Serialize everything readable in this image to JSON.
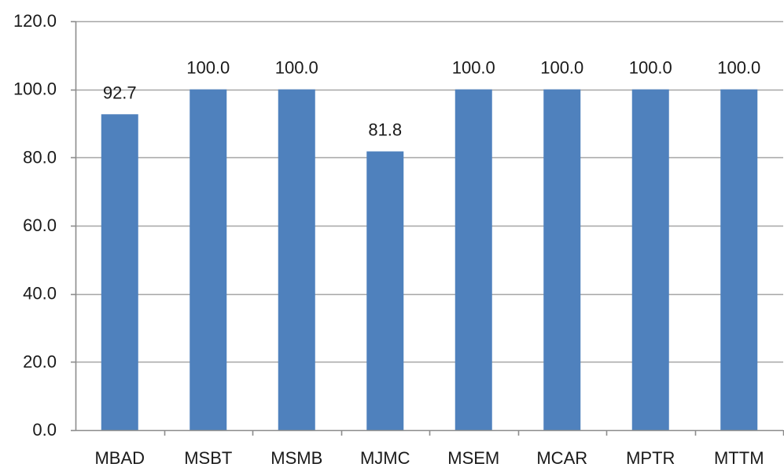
{
  "chart_data": {
    "type": "bar",
    "title": "",
    "xlabel": "",
    "ylabel": "",
    "categories": [
      "MBAD",
      "MSBT",
      "MSMB",
      "MJMC",
      "MSEM",
      "MCAR",
      "MPTR",
      "MTTM"
    ],
    "values": [
      92.7,
      100.0,
      100.0,
      81.8,
      100.0,
      100.0,
      100.0,
      100.0
    ],
    "data_labels": [
      "92.7",
      "100.0",
      "100.0",
      "81.8",
      "100.0",
      "100.0",
      "100.0",
      "100.0"
    ],
    "ylim": [
      0,
      120
    ],
    "yticks": [
      0,
      20,
      40,
      60,
      80,
      100,
      120
    ],
    "ytick_labels": [
      "0.0",
      "20.0",
      "40.0",
      "60.0",
      "80.0",
      "100.0",
      "120.0"
    ],
    "grid": true,
    "legend": "none",
    "bar_color": "#4f81bd",
    "grid_color": "#a6a6a6",
    "axis_color": "#8c8c8c"
  }
}
